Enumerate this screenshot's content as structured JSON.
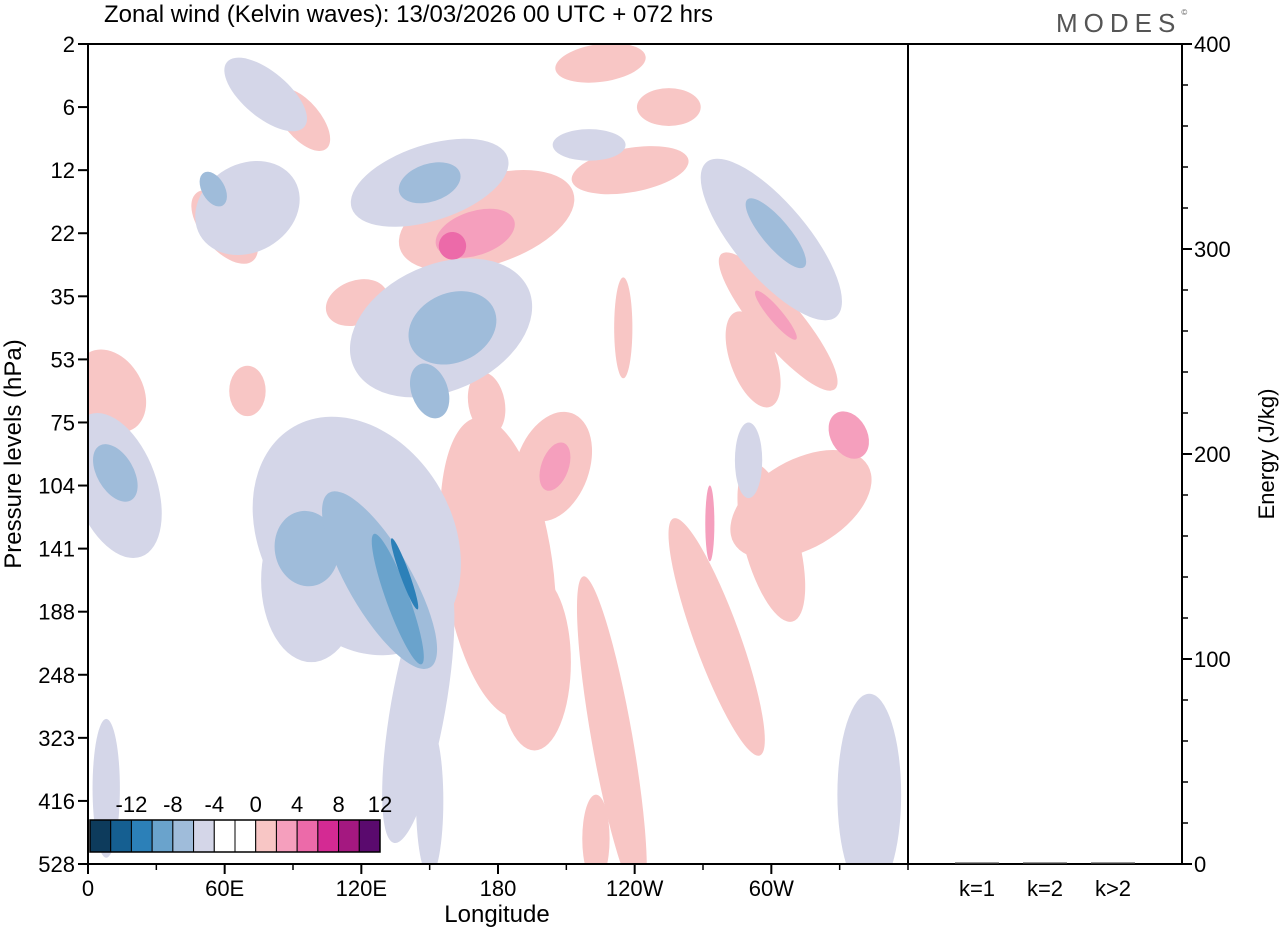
{
  "title": "Zonal wind (Kelvin waves):  13/03/2026  00 UTC  + 072 hrs",
  "brand": "MODES",
  "chart_data": [
    {
      "type": "heatmap",
      "name": "zonal-wind-kelvin",
      "xlabel": "Longitude",
      "ylabel": "Pressure levels (hPa)",
      "x_ticks": [
        "0",
        "60E",
        "120E",
        "180",
        "120W",
        "60W"
      ],
      "x_tick_values": [
        0,
        60,
        120,
        180,
        240,
        300
      ],
      "xlim": [
        0,
        360
      ],
      "y_ticks": [
        "2",
        "6",
        "12",
        "22",
        "35",
        "53",
        "75",
        "104",
        "141",
        "188",
        "248",
        "323",
        "416",
        "528"
      ],
      "colorbar": {
        "labels": [
          "-12",
          "-8",
          "-4",
          "0",
          "4",
          "8",
          "12"
        ],
        "colors": [
          "#0d3b5c",
          "#155f91",
          "#2c80b8",
          "#6aa3cc",
          "#9fbcda",
          "#d4d6e8",
          "#ffffff",
          "#ffffff",
          "#f8c6c5",
          "#f59fbd",
          "#ec6aa9",
          "#d42a93",
          "#a41880",
          "#5a0a6e"
        ]
      },
      "features": [
        {
          "sign": "positive",
          "lon_range": [
            148,
            172
          ],
          "level_range": [
            "22",
            "35"
          ],
          "peak_class": "8"
        },
        {
          "sign": "positive",
          "lon_range": [
            200,
            230
          ],
          "level_range": [
            "75",
            "104"
          ],
          "peak_class": "4"
        },
        {
          "sign": "negative",
          "lon_range": [
            125,
            145
          ],
          "level_range": [
            "104",
            "188"
          ],
          "peak_class": "-8"
        },
        {
          "sign": "negative",
          "lon_range": [
            155,
            180
          ],
          "level_range": [
            "35",
            "75"
          ],
          "peak_class": "-4"
        },
        {
          "sign": "positive",
          "lon_range": [
            320,
            360
          ],
          "level_range": [
            "53",
            "104"
          ],
          "peak_class": "8"
        },
        {
          "sign": "positive",
          "lon_range": [
            160,
            220
          ],
          "level_range": [
            "141",
            "323"
          ],
          "peak_class": "0"
        }
      ]
    },
    {
      "type": "bar",
      "name": "kelvin-energy",
      "categories": [
        "k=1",
        "k=2",
        "k>2"
      ],
      "values": [
        0,
        0,
        0
      ],
      "ylabel": "Energy (J/kg)",
      "ylim": [
        0,
        400
      ],
      "y_ticks": [
        "0",
        "100",
        "200",
        "300",
        "400"
      ]
    }
  ]
}
